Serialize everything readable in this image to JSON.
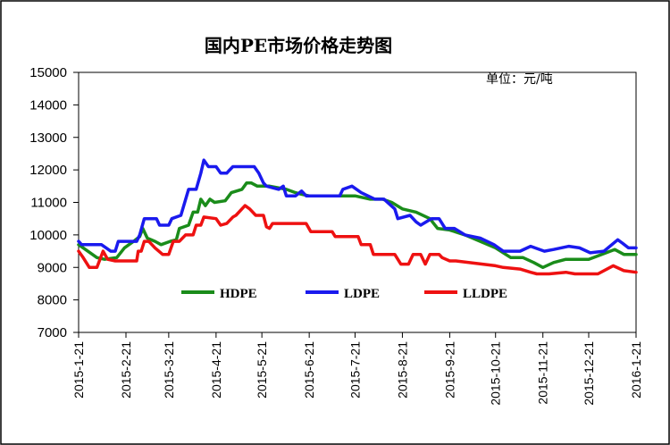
{
  "chart_data": {
    "type": "line",
    "title": "国内PE市场价格走势图",
    "unit_note": "单位：元/吨",
    "xlabel": "",
    "ylabel": "",
    "ylim": [
      7000,
      15000
    ],
    "yticks": [
      "7000",
      "8000",
      "9000",
      "10000",
      "11000",
      "12000",
      "13000",
      "14000",
      "15000"
    ],
    "xlim": [
      "2015-01-21",
      "2016-01-21"
    ],
    "xticks": [
      "2015-1-21",
      "2015-2-21",
      "2015-3-21",
      "2015-4-21",
      "2015-5-21",
      "2015-6-21",
      "2015-7-21",
      "2015-8-21",
      "2015-9-21",
      "2015-10-21",
      "2015-11-21",
      "2015-12-21",
      "2016-1-21"
    ],
    "grid": false,
    "legend_position": "bottom-center",
    "series": [
      {
        "name": "HDPE",
        "color": "#1a8c1a",
        "points": [
          [
            "2015-01-21",
            9700
          ],
          [
            "2015-01-27",
            9500
          ],
          [
            "2015-02-02",
            9300
          ],
          [
            "2015-02-07",
            9250
          ],
          [
            "2015-02-15",
            9300
          ],
          [
            "2015-02-20",
            9600
          ],
          [
            "2015-02-26",
            9800
          ],
          [
            "2015-03-02",
            9950
          ],
          [
            "2015-03-04",
            10200
          ],
          [
            "2015-03-07",
            9900
          ],
          [
            "2015-03-12",
            9800
          ],
          [
            "2015-03-16",
            9700
          ],
          [
            "2015-03-22",
            9800
          ],
          [
            "2015-03-26",
            9850
          ],
          [
            "2015-03-28",
            10200
          ],
          [
            "2015-04-03",
            10300
          ],
          [
            "2015-04-06",
            10700
          ],
          [
            "2015-04-09",
            10700
          ],
          [
            "2015-04-11",
            11100
          ],
          [
            "2015-04-14",
            10900
          ],
          [
            "2015-04-17",
            11100
          ],
          [
            "2015-04-20",
            11000
          ],
          [
            "2015-04-27",
            11050
          ],
          [
            "2015-05-01",
            11300
          ],
          [
            "2015-05-08",
            11400
          ],
          [
            "2015-05-11",
            11600
          ],
          [
            "2015-05-14",
            11600
          ],
          [
            "2015-05-18",
            11500
          ],
          [
            "2015-05-26",
            11500
          ],
          [
            "2015-06-06",
            11400
          ],
          [
            "2015-06-12",
            11300
          ],
          [
            "2015-06-16",
            11250
          ],
          [
            "2015-06-21",
            11200
          ],
          [
            "2015-07-21",
            11200
          ],
          [
            "2015-07-31",
            11100
          ],
          [
            "2015-08-08",
            11100
          ],
          [
            "2015-08-14",
            11000
          ],
          [
            "2015-08-21",
            10800
          ],
          [
            "2015-08-30",
            10700
          ],
          [
            "2015-09-08",
            10500
          ],
          [
            "2015-09-13",
            10200
          ],
          [
            "2015-09-21",
            10150
          ],
          [
            "2015-10-01",
            10000
          ],
          [
            "2015-10-11",
            9800
          ],
          [
            "2015-10-21",
            9600
          ],
          [
            "2015-10-31",
            9300
          ],
          [
            "2015-11-08",
            9300
          ],
          [
            "2015-11-15",
            9150
          ],
          [
            "2015-11-21",
            9000
          ],
          [
            "2015-11-28",
            9150
          ],
          [
            "2015-12-06",
            9250
          ],
          [
            "2015-12-21",
            9250
          ],
          [
            "2016-01-07",
            9550
          ],
          [
            "2016-01-13",
            9400
          ],
          [
            "2016-01-21",
            9400
          ]
        ]
      },
      {
        "name": "LDPE",
        "color": "#1a1aee",
        "points": [
          [
            "2015-01-21",
            9800
          ],
          [
            "2015-01-23",
            9700
          ],
          [
            "2015-02-05",
            9700
          ],
          [
            "2015-02-08",
            9600
          ],
          [
            "2015-02-11",
            9500
          ],
          [
            "2015-02-14",
            9500
          ],
          [
            "2015-02-16",
            9800
          ],
          [
            "2015-02-28",
            9800
          ],
          [
            "2015-03-02",
            10000
          ],
          [
            "2015-03-05",
            10500
          ],
          [
            "2015-03-13",
            10500
          ],
          [
            "2015-03-15",
            10300
          ],
          [
            "2015-03-21",
            10300
          ],
          [
            "2015-03-23",
            10500
          ],
          [
            "2015-03-29",
            10600
          ],
          [
            "2015-04-03",
            11400
          ],
          [
            "2015-04-08",
            11400
          ],
          [
            "2015-04-11",
            11900
          ],
          [
            "2015-04-13",
            12300
          ],
          [
            "2015-04-16",
            12100
          ],
          [
            "2015-04-21",
            12100
          ],
          [
            "2015-04-24",
            11900
          ],
          [
            "2015-04-28",
            11900
          ],
          [
            "2015-04-30",
            12000
          ],
          [
            "2015-05-02",
            12100
          ],
          [
            "2015-05-16",
            12100
          ],
          [
            "2015-05-19",
            11900
          ],
          [
            "2015-05-22",
            11600
          ],
          [
            "2015-05-24",
            11500
          ],
          [
            "2015-06-01",
            11400
          ],
          [
            "2015-06-04",
            11500
          ],
          [
            "2015-06-06",
            11200
          ],
          [
            "2015-06-12",
            11200
          ],
          [
            "2015-06-16",
            11350
          ],
          [
            "2015-06-19",
            11200
          ],
          [
            "2015-07-11",
            11200
          ],
          [
            "2015-07-13",
            11400
          ],
          [
            "2015-07-19",
            11500
          ],
          [
            "2015-07-25",
            11300
          ],
          [
            "2015-08-03",
            11100
          ],
          [
            "2015-08-09",
            11100
          ],
          [
            "2015-08-16",
            10800
          ],
          [
            "2015-08-18",
            10500
          ],
          [
            "2015-08-26",
            10600
          ],
          [
            "2015-08-30",
            10400
          ],
          [
            "2015-09-02",
            10300
          ],
          [
            "2015-09-09",
            10500
          ],
          [
            "2015-09-14",
            10500
          ],
          [
            "2015-09-18",
            10200
          ],
          [
            "2015-09-24",
            10200
          ],
          [
            "2015-10-01",
            10000
          ],
          [
            "2015-10-11",
            9900
          ],
          [
            "2015-10-20",
            9700
          ],
          [
            "2015-10-23",
            9600
          ],
          [
            "2015-10-26",
            9500
          ],
          [
            "2015-11-06",
            9500
          ],
          [
            "2015-11-13",
            9650
          ],
          [
            "2015-11-22",
            9500
          ],
          [
            "2015-11-28",
            9550
          ],
          [
            "2015-12-08",
            9650
          ],
          [
            "2015-12-15",
            9600
          ],
          [
            "2015-12-22",
            9450
          ],
          [
            "2015-12-31",
            9500
          ],
          [
            "2016-01-09",
            9850
          ],
          [
            "2016-01-12",
            9750
          ],
          [
            "2016-01-16",
            9600
          ],
          [
            "2016-01-21",
            9600
          ]
        ]
      },
      {
        "name": "LLDPE",
        "color": "#ee1111",
        "points": [
          [
            "2015-01-21",
            9500
          ],
          [
            "2015-01-24",
            9300
          ],
          [
            "2015-01-28",
            9000
          ],
          [
            "2015-02-02",
            9000
          ],
          [
            "2015-02-06",
            9500
          ],
          [
            "2015-02-09",
            9250
          ],
          [
            "2015-02-14",
            9200
          ],
          [
            "2015-02-28",
            9200
          ],
          [
            "2015-03-01",
            9500
          ],
          [
            "2015-03-03",
            9500
          ],
          [
            "2015-03-05",
            9800
          ],
          [
            "2015-03-08",
            9800
          ],
          [
            "2015-03-12",
            9600
          ],
          [
            "2015-03-17",
            9400
          ],
          [
            "2015-03-21",
            9400
          ],
          [
            "2015-03-24",
            9800
          ],
          [
            "2015-03-28",
            9800
          ],
          [
            "2015-04-01",
            10000
          ],
          [
            "2015-04-06",
            10000
          ],
          [
            "2015-04-08",
            10300
          ],
          [
            "2015-04-11",
            10300
          ],
          [
            "2015-04-13",
            10550
          ],
          [
            "2015-04-21",
            10500
          ],
          [
            "2015-04-24",
            10300
          ],
          [
            "2015-04-28",
            10350
          ],
          [
            "2015-05-02",
            10550
          ],
          [
            "2015-05-04",
            10600
          ],
          [
            "2015-05-10",
            10900
          ],
          [
            "2015-05-13",
            10800
          ],
          [
            "2015-05-17",
            10600
          ],
          [
            "2015-05-22",
            10600
          ],
          [
            "2015-05-24",
            10250
          ],
          [
            "2015-05-26",
            10200
          ],
          [
            "2015-05-28",
            10350
          ],
          [
            "2015-06-05",
            10350
          ],
          [
            "2015-06-19",
            10350
          ],
          [
            "2015-06-22",
            10100
          ],
          [
            "2015-06-30",
            10100
          ],
          [
            "2015-07-06",
            10100
          ],
          [
            "2015-07-08",
            9950
          ],
          [
            "2015-07-16",
            9950
          ],
          [
            "2015-07-23",
            9950
          ],
          [
            "2015-07-25",
            9700
          ],
          [
            "2015-07-31",
            9700
          ],
          [
            "2015-08-02",
            9400
          ],
          [
            "2015-08-16",
            9400
          ],
          [
            "2015-08-20",
            9100
          ],
          [
            "2015-08-25",
            9100
          ],
          [
            "2015-08-28",
            9400
          ],
          [
            "2015-09-02",
            9400
          ],
          [
            "2015-09-05",
            9100
          ],
          [
            "2015-09-08",
            9400
          ],
          [
            "2015-09-14",
            9400
          ],
          [
            "2015-09-16",
            9300
          ],
          [
            "2015-09-21",
            9200
          ],
          [
            "2015-09-25",
            9200
          ],
          [
            "2015-10-21",
            9050
          ],
          [
            "2015-10-26",
            9000
          ],
          [
            "2015-11-06",
            8950
          ],
          [
            "2015-11-13",
            8850
          ],
          [
            "2015-11-17",
            8800
          ],
          [
            "2015-11-25",
            8800
          ],
          [
            "2015-12-06",
            8850
          ],
          [
            "2015-12-12",
            8800
          ],
          [
            "2015-12-21",
            8800
          ],
          [
            "2015-12-27",
            8800
          ],
          [
            "2016-01-06",
            9050
          ],
          [
            "2016-01-13",
            8900
          ],
          [
            "2016-01-21",
            8850
          ]
        ]
      }
    ]
  }
}
